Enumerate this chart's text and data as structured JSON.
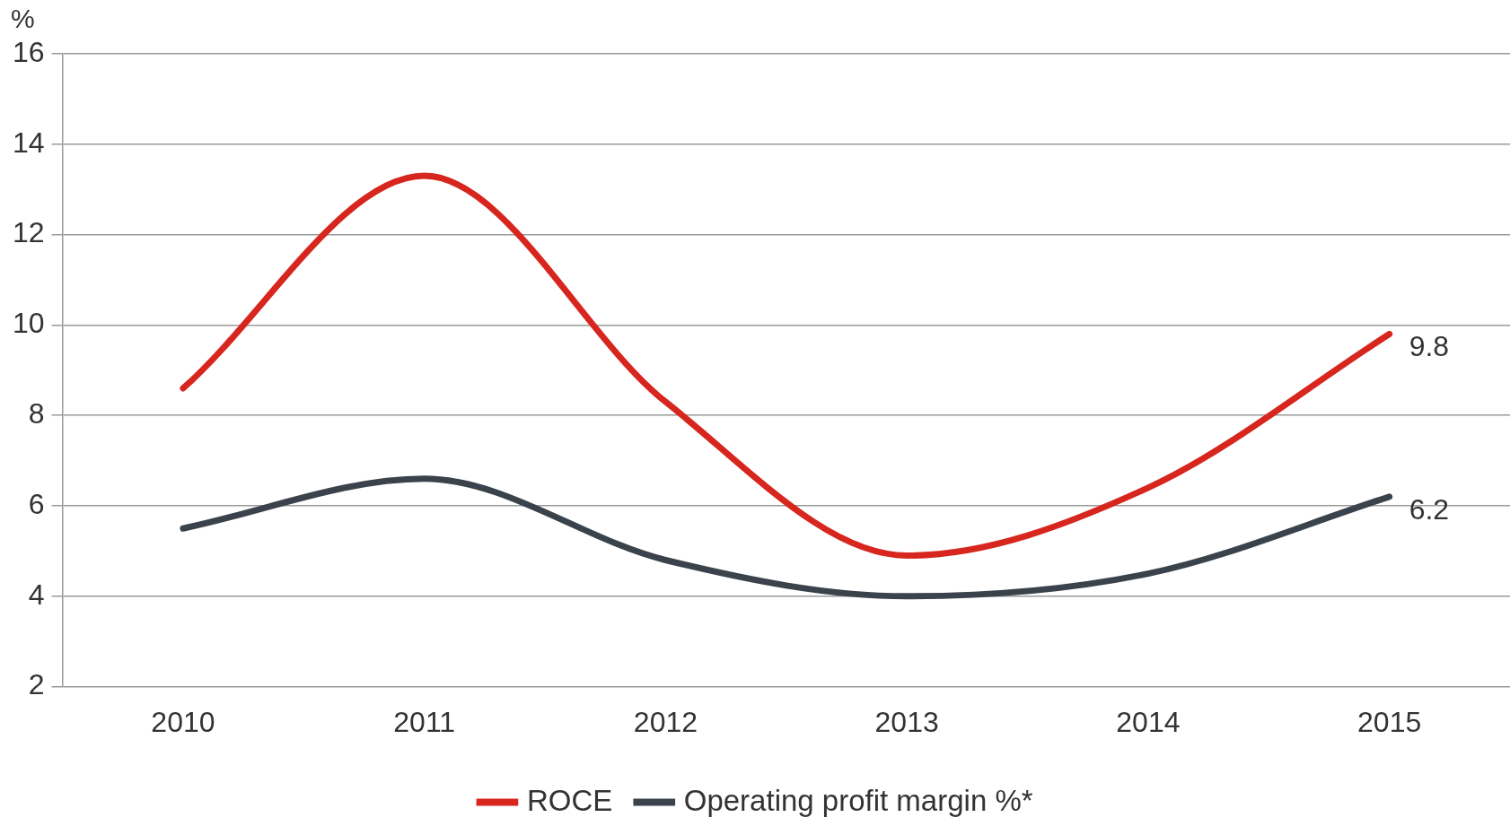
{
  "chart_data": {
    "type": "line",
    "ylabel": "%",
    "categories": [
      "2010",
      "2011",
      "2012",
      "2013",
      "2014",
      "2015"
    ],
    "series": [
      {
        "name": "ROCE",
        "color": "#d7261e",
        "values": [
          8.6,
          13.3,
          8.3,
          4.9,
          6.4,
          9.8
        ],
        "value_labels": [
          null,
          null,
          null,
          null,
          null,
          "9.8"
        ]
      },
      {
        "name": "Operating profit margin %*",
        "color": "#3a434b",
        "values": [
          5.5,
          6.6,
          4.8,
          4.0,
          4.5,
          6.2
        ],
        "value_labels": [
          null,
          null,
          null,
          null,
          null,
          "6.2"
        ]
      }
    ],
    "ylim": [
      2,
      16
    ],
    "yticks": [
      2,
      4,
      6,
      8,
      10,
      12,
      14,
      16
    ],
    "grid": "y",
    "legend": "bottom",
    "marker": "none",
    "line_style": "solid"
  }
}
